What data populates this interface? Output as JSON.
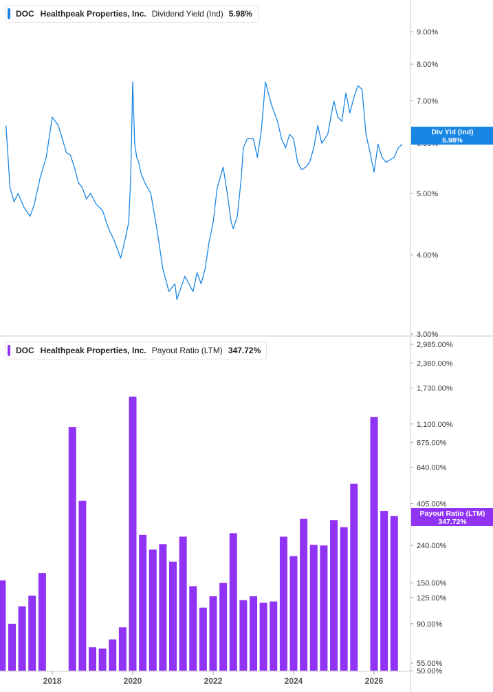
{
  "chart_data": [
    {
      "type": "line",
      "scale": "log",
      "ticker": "DOC",
      "company": "Healthpeak Properties, Inc.",
      "metric": "Dividend Yield (Ind)",
      "current_value": "5.98%",
      "callout": {
        "label": "Div Yld (Ind)",
        "value": "5.98%"
      },
      "color": "#1a86e3",
      "ylim": [
        3.0,
        10.1
      ],
      "yticks": [
        {
          "value": 9,
          "label": "9.00%"
        },
        {
          "value": 8,
          "label": "8.00%"
        },
        {
          "value": 7,
          "label": "7.00%"
        },
        {
          "value": 6,
          "label": "6.00%"
        },
        {
          "value": 5,
          "label": "5.00%"
        },
        {
          "value": 4,
          "label": "4.00%"
        },
        {
          "value": 3,
          "label": "3.00%"
        }
      ],
      "x": [
        2016.85,
        2016.95,
        2017.05,
        2017.15,
        2017.3,
        2017.45,
        2017.55,
        2017.7,
        2017.85,
        2018.0,
        2018.15,
        2018.25,
        2018.35,
        2018.45,
        2018.55,
        2018.65,
        2018.75,
        2018.85,
        2018.95,
        2019.1,
        2019.25,
        2019.4,
        2019.55,
        2019.7,
        2019.8,
        2019.9,
        2019.95,
        2020.0,
        2020.05,
        2020.1,
        2020.15,
        2020.2,
        2020.3,
        2020.45,
        2020.6,
        2020.75,
        2020.9,
        2021.05,
        2021.1,
        2021.2,
        2021.3,
        2021.4,
        2021.5,
        2021.6,
        2021.7,
        2021.8,
        2021.9,
        2022.0,
        2022.1,
        2022.25,
        2022.35,
        2022.45,
        2022.5,
        2022.6,
        2022.7,
        2022.75,
        2022.85,
        2023.0,
        2023.1,
        2023.2,
        2023.3,
        2023.45,
        2023.6,
        2023.7,
        2023.8,
        2023.9,
        2024.0,
        2024.1,
        2024.2,
        2024.3,
        2024.4,
        2024.5,
        2024.6,
        2024.7,
        2024.85,
        2025.0,
        2025.1,
        2025.2,
        2025.3,
        2025.4,
        2025.5,
        2025.6,
        2025.7,
        2025.8,
        2025.9,
        2026.0,
        2026.1,
        2026.2,
        2026.3,
        2026.4,
        2026.5,
        2026.6,
        2026.7
      ],
      "y": [
        6.4,
        5.1,
        4.85,
        5.0,
        4.75,
        4.6,
        4.8,
        5.3,
        5.7,
        6.6,
        6.4,
        6.1,
        5.8,
        5.75,
        5.5,
        5.2,
        5.1,
        4.9,
        5.0,
        4.8,
        4.7,
        4.4,
        4.2,
        3.95,
        4.2,
        4.5,
        5.3,
        7.5,
        6.0,
        5.7,
        5.6,
        5.4,
        5.2,
        5.0,
        4.4,
        3.8,
        3.5,
        3.6,
        3.4,
        3.55,
        3.7,
        3.6,
        3.5,
        3.75,
        3.6,
        3.8,
        4.2,
        4.5,
        5.1,
        5.5,
        5.0,
        4.5,
        4.4,
        4.6,
        5.3,
        5.9,
        6.1,
        6.1,
        5.7,
        6.3,
        7.5,
        6.9,
        6.5,
        6.1,
        5.9,
        6.2,
        6.1,
        5.6,
        5.45,
        5.5,
        5.6,
        5.9,
        6.4,
        6.0,
        6.2,
        7.0,
        6.6,
        6.5,
        7.2,
        6.7,
        7.1,
        7.4,
        7.3,
        6.2,
        5.8,
        5.4,
        5.98,
        5.7,
        5.6,
        5.65,
        5.7,
        5.9,
        5.98
      ]
    },
    {
      "type": "bar",
      "scale": "log",
      "ticker": "DOC",
      "company": "Healthpeak Properties, Inc.",
      "metric": "Payout Ratio (LTM)",
      "current_value": "347.72%",
      "callout": {
        "label": "Payout Ratio (LTM)",
        "value": "347.72%"
      },
      "color": "#9033f5",
      "ylim": [
        50,
        3200
      ],
      "yticks": [
        {
          "value": 2985,
          "label": "2,985.00%"
        },
        {
          "value": 2360,
          "label": "2,360.00%"
        },
        {
          "value": 1730,
          "label": "1,730.00%"
        },
        {
          "value": 1100,
          "label": "1,100.00%"
        },
        {
          "value": 875,
          "label": "875.00%"
        },
        {
          "value": 640,
          "label": "640.00%"
        },
        {
          "value": 405,
          "label": "405.00%"
        },
        {
          "value": 240,
          "label": "240.00%"
        },
        {
          "value": 150,
          "label": "150.00%"
        },
        {
          "value": 125,
          "label": "125.00%"
        },
        {
          "value": 90,
          "label": "90.00%"
        },
        {
          "value": 55,
          "label": "55.00%"
        },
        {
          "value": 50,
          "label": "50.00%"
        }
      ],
      "x": [
        2016.75,
        2017.0,
        2017.25,
        2017.5,
        2017.75,
        2018.5,
        2018.75,
        2019.0,
        2019.25,
        2019.5,
        2019.75,
        2020.0,
        2020.25,
        2020.5,
        2020.75,
        2021.0,
        2021.25,
        2021.5,
        2021.75,
        2022.0,
        2022.25,
        2022.5,
        2022.75,
        2023.0,
        2023.25,
        2023.5,
        2023.75,
        2024.0,
        2024.25,
        2024.5,
        2024.75,
        2025.0,
        2025.25,
        2025.5,
        2026.0,
        2026.25,
        2026.5
      ],
      "values": [
        155,
        90,
        112,
        128,
        170,
        1060,
        420,
        67,
        66,
        74,
        86,
        1550,
        274,
        228,
        244,
        196,
        268,
        144,
        110,
        127,
        150,
        280,
        121,
        127,
        117,
        119,
        268,
        210,
        335,
        242,
        240,
        330,
        302,
        520,
        1200,
        370,
        347.72
      ]
    }
  ],
  "x_axis": {
    "ticks": [
      {
        "value": 2018,
        "label": "2018"
      },
      {
        "value": 2020,
        "label": "2020"
      },
      {
        "value": 2022,
        "label": "2022"
      },
      {
        "value": 2024,
        "label": "2024"
      },
      {
        "value": 2026,
        "label": "2026"
      }
    ]
  }
}
